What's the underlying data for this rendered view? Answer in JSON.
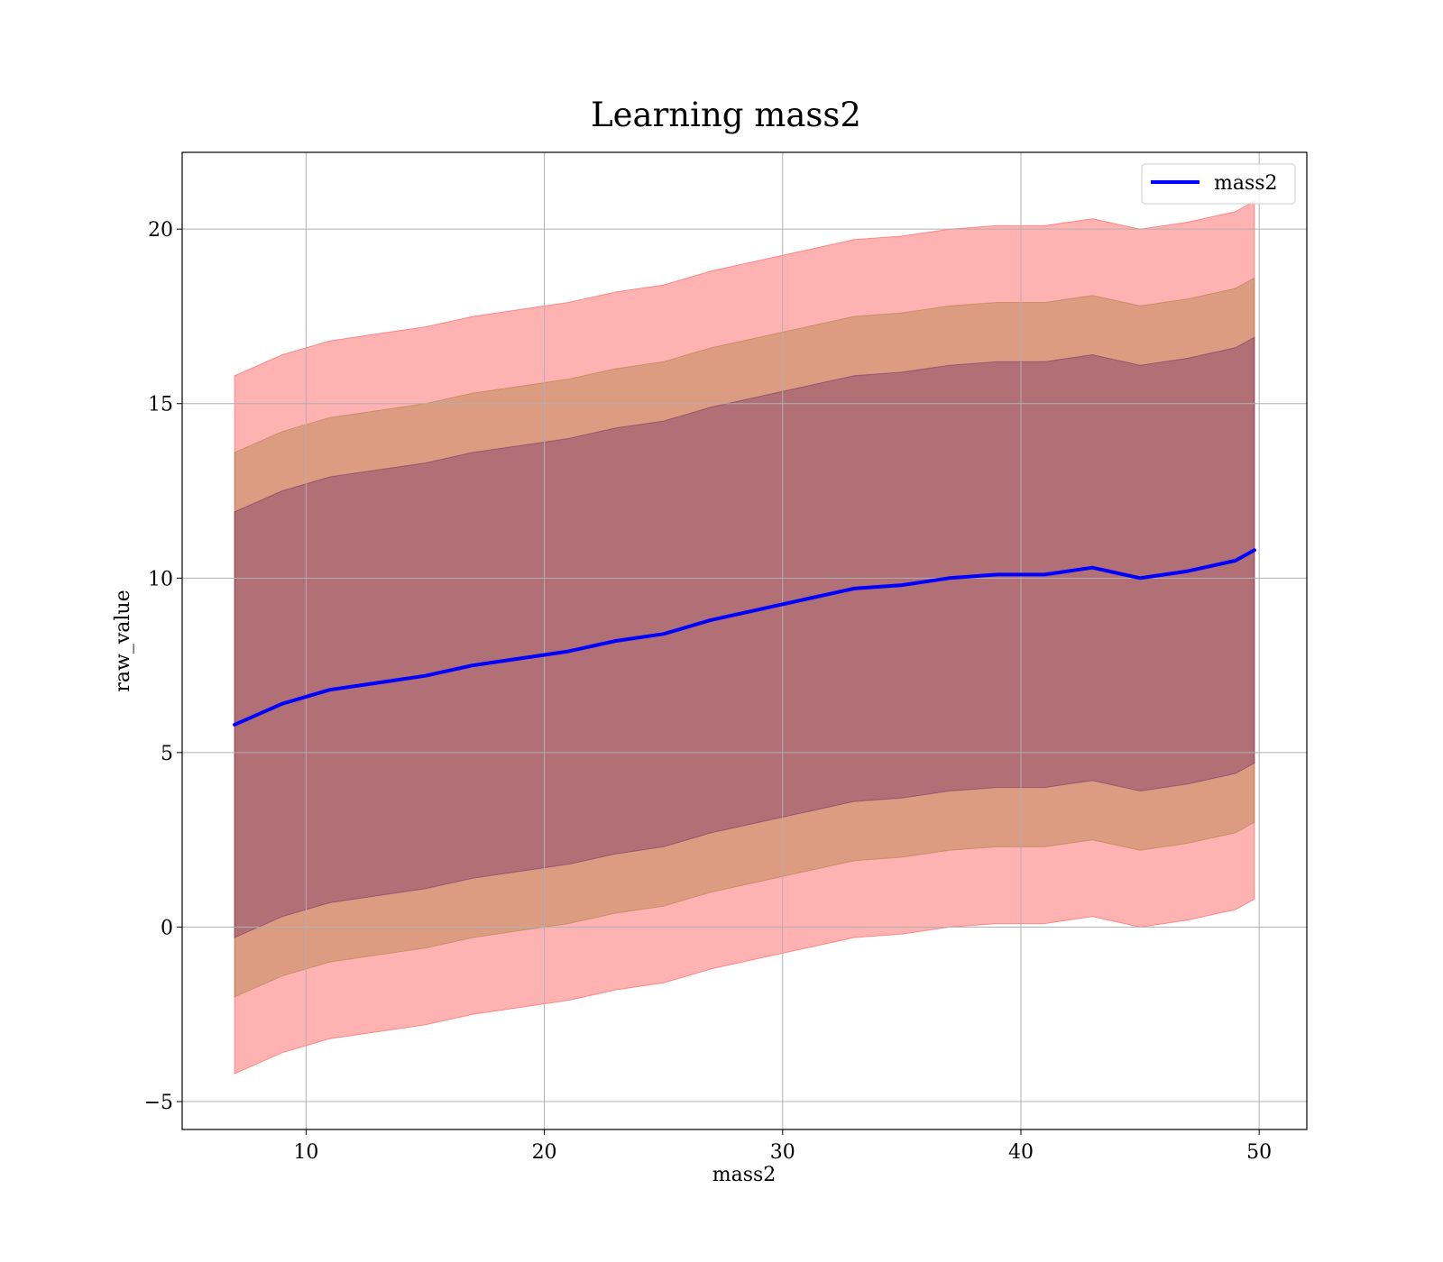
{
  "chart_data": {
    "type": "line",
    "title": "Learning mass2",
    "xlabel": "mass2",
    "ylabel": "raw_value",
    "xlim": [
      4.8,
      52.0
    ],
    "ylim": [
      -5.8,
      22.2
    ],
    "xticks": [
      10,
      20,
      30,
      40,
      50
    ],
    "yticks": [
      -5,
      0,
      5,
      10,
      15,
      20
    ],
    "xtick_labels": [
      "10",
      "20",
      "30",
      "40",
      "50"
    ],
    "ytick_labels": [
      "−5",
      "0",
      "5",
      "10",
      "15",
      "20"
    ],
    "grid": true,
    "legend_position": "top-right",
    "x": [
      7.0,
      9.0,
      11.0,
      13.0,
      15.0,
      17.0,
      19.0,
      21.0,
      23.0,
      25.0,
      27.0,
      29.0,
      31.0,
      33.0,
      35.0,
      37.0,
      39.0,
      41.0,
      43.0,
      45.0,
      47.0,
      49.0,
      49.8
    ],
    "series": [
      {
        "name": "mass2",
        "color": "#0000ff",
        "values": [
          5.8,
          6.4,
          6.8,
          7.0,
          7.2,
          7.5,
          7.7,
          7.9,
          8.2,
          8.4,
          8.8,
          9.1,
          9.4,
          9.7,
          9.8,
          10.0,
          10.1,
          10.1,
          10.3,
          10.0,
          10.2,
          10.5,
          10.8
        ]
      }
    ],
    "bands": [
      {
        "level": "outer",
        "color": "#ff0000",
        "opacity": 0.3,
        "lower": [
          -4.2,
          -3.6,
          -3.2,
          -3.0,
          -2.8,
          -2.5,
          -2.3,
          -2.1,
          -1.8,
          -1.6,
          -1.2,
          -0.9,
          -0.6,
          -0.3,
          -0.2,
          0.0,
          0.1,
          0.1,
          0.3,
          0.0,
          0.2,
          0.5,
          0.8
        ],
        "upper": [
          15.8,
          16.4,
          16.8,
          17.0,
          17.2,
          17.5,
          17.7,
          17.9,
          18.2,
          18.4,
          18.8,
          19.1,
          19.4,
          19.7,
          19.8,
          20.0,
          20.1,
          20.1,
          20.3,
          20.0,
          20.2,
          20.5,
          20.8
        ]
      },
      {
        "level": "middle",
        "color": "#8b6914",
        "opacity": 0.3,
        "lower": [
          -2.0,
          -1.4,
          -1.0,
          -0.8,
          -0.6,
          -0.3,
          -0.1,
          0.1,
          0.4,
          0.6,
          1.0,
          1.3,
          1.6,
          1.9,
          2.0,
          2.2,
          2.3,
          2.3,
          2.5,
          2.2,
          2.4,
          2.7,
          3.0
        ],
        "upper": [
          13.6,
          14.2,
          14.6,
          14.8,
          15.0,
          15.3,
          15.5,
          15.7,
          16.0,
          16.2,
          16.6,
          16.9,
          17.2,
          17.5,
          17.6,
          17.8,
          17.9,
          17.9,
          18.1,
          17.8,
          18.0,
          18.3,
          18.6
        ]
      },
      {
        "level": "inner",
        "color": "#4b0a5a",
        "opacity": 0.3,
        "lower": [
          -0.3,
          0.3,
          0.7,
          0.9,
          1.1,
          1.4,
          1.6,
          1.8,
          2.1,
          2.3,
          2.7,
          3.0,
          3.3,
          3.6,
          3.7,
          3.9,
          4.0,
          4.0,
          4.2,
          3.9,
          4.1,
          4.4,
          4.7
        ],
        "upper": [
          11.9,
          12.5,
          12.9,
          13.1,
          13.3,
          13.6,
          13.8,
          14.0,
          14.3,
          14.5,
          14.9,
          15.2,
          15.5,
          15.8,
          15.9,
          16.1,
          16.2,
          16.2,
          16.4,
          16.1,
          16.3,
          16.6,
          16.9
        ]
      }
    ]
  }
}
